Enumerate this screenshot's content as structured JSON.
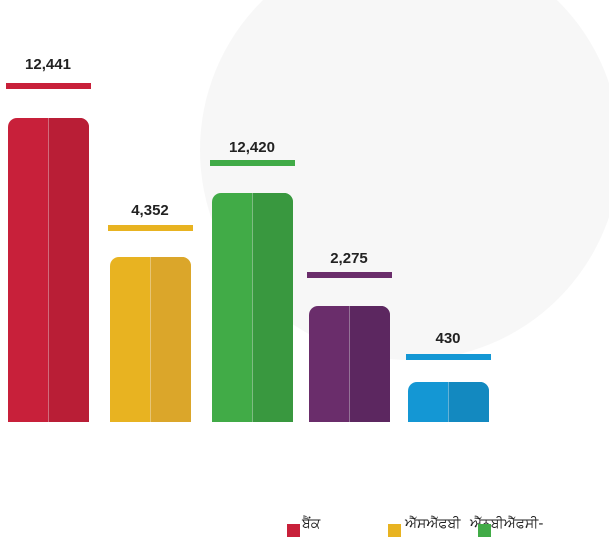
{
  "bars": [
    {
      "value_label": "12,441",
      "color": "#c8203a",
      "shade": "#b91e36"
    },
    {
      "value_label": "4,352",
      "color": "#e8b321",
      "shade": "#dba62a"
    },
    {
      "value_label": "12,420",
      "color": "#41ab47",
      "shade": "#39983f"
    },
    {
      "value_label": "2,275",
      "color": "#6a2d6b",
      "shade": "#5c2760"
    },
    {
      "value_label": "430",
      "color": "#1497d4",
      "shade": "#1389c0"
    }
  ],
  "legend": [
    {
      "label": "ਬੈਂਕ",
      "color": "#c8203a"
    },
    {
      "label": "ਐੱਸਐੱਫਬੀ",
      "color": "#e8b321"
    },
    {
      "label": "ਐੱਨਬੀਐੱਫਸੀ-",
      "color": "#41ab47"
    }
  ]
}
